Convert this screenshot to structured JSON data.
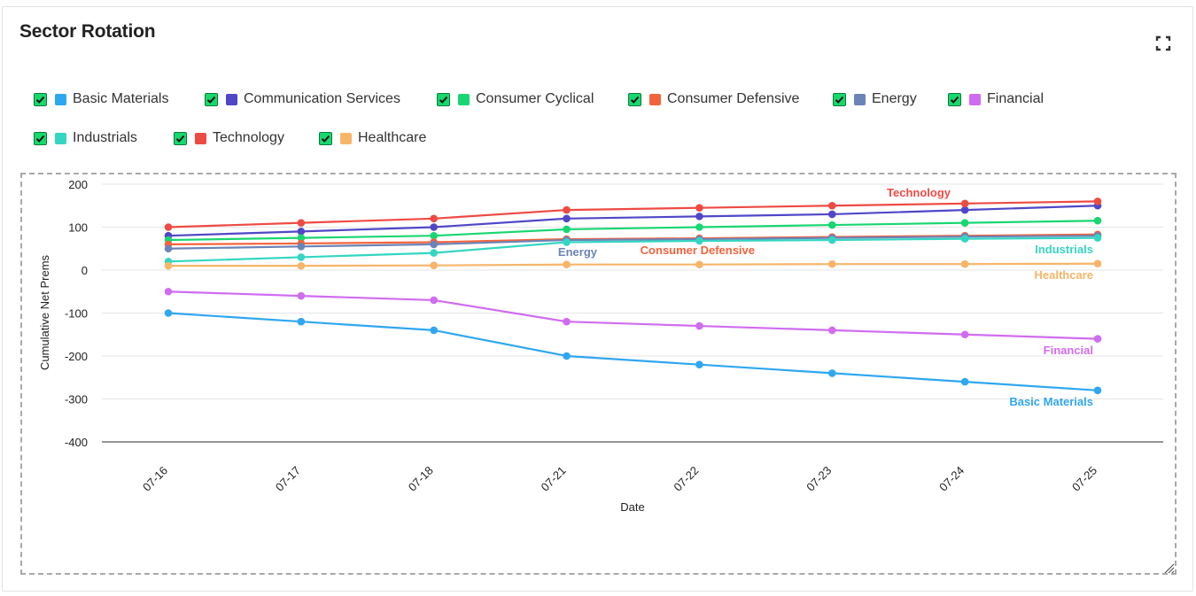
{
  "widget": {
    "title": "Sector Rotation",
    "expand_icon": "expand-icon",
    "resize_icon": "resize-grip-icon"
  },
  "chart_data": {
    "type": "line",
    "title": "",
    "xlabel": "Date",
    "ylabel": "Cumulative Net Prems",
    "categories": [
      "07-16",
      "07-17",
      "07-18",
      "07-21",
      "07-22",
      "07-23",
      "07-24",
      "07-25"
    ],
    "ylim": [
      -400,
      200
    ],
    "yticks": [
      200,
      100,
      0,
      -100,
      -200,
      -300,
      -400
    ],
    "grid": true,
    "legend_position": "top",
    "series": [
      {
        "name": "Basic Materials",
        "color": "#2fa7f0",
        "checked": true,
        "end_label": "Basic Materials",
        "values": [
          -100,
          -120,
          -140,
          -200,
          -220,
          -240,
          -260,
          -280
        ]
      },
      {
        "name": "Communication Services",
        "color": "#5047c8",
        "checked": true,
        "end_label": "",
        "values": [
          80,
          90,
          100,
          120,
          125,
          130,
          140,
          150
        ]
      },
      {
        "name": "Consumer Cyclical",
        "color": "#1ad672",
        "checked": true,
        "end_label": "",
        "values": [
          70,
          75,
          80,
          95,
          100,
          105,
          110,
          115
        ]
      },
      {
        "name": "Consumer Defensive",
        "color": "#f4643c",
        "checked": true,
        "end_label": "Consumer Defensive",
        "values": [
          60,
          62,
          65,
          72,
          74,
          77,
          80,
          83
        ]
      },
      {
        "name": "Energy",
        "color": "#6b84b8",
        "checked": true,
        "end_label": "Energy",
        "values": [
          50,
          55,
          60,
          70,
          72,
          75,
          78,
          80
        ]
      },
      {
        "name": "Financial",
        "color": "#d06cf0",
        "checked": true,
        "end_label": "Financial",
        "values": [
          -50,
          -60,
          -70,
          -120,
          -130,
          -140,
          -150,
          -160
        ]
      },
      {
        "name": "Industrials",
        "color": "#34d6c2",
        "checked": true,
        "end_label": "Industrials",
        "values": [
          20,
          30,
          40,
          65,
          68,
          70,
          73,
          75
        ]
      },
      {
        "name": "Technology",
        "color": "#ee4a44",
        "checked": true,
        "end_label": "Technology",
        "values": [
          100,
          110,
          120,
          140,
          145,
          150,
          155,
          160
        ]
      },
      {
        "name": "Healthcare",
        "color": "#f7b56a",
        "checked": true,
        "end_label": "Healthcare",
        "values": [
          10,
          10,
          11,
          13,
          13,
          14,
          14,
          15
        ]
      }
    ]
  }
}
